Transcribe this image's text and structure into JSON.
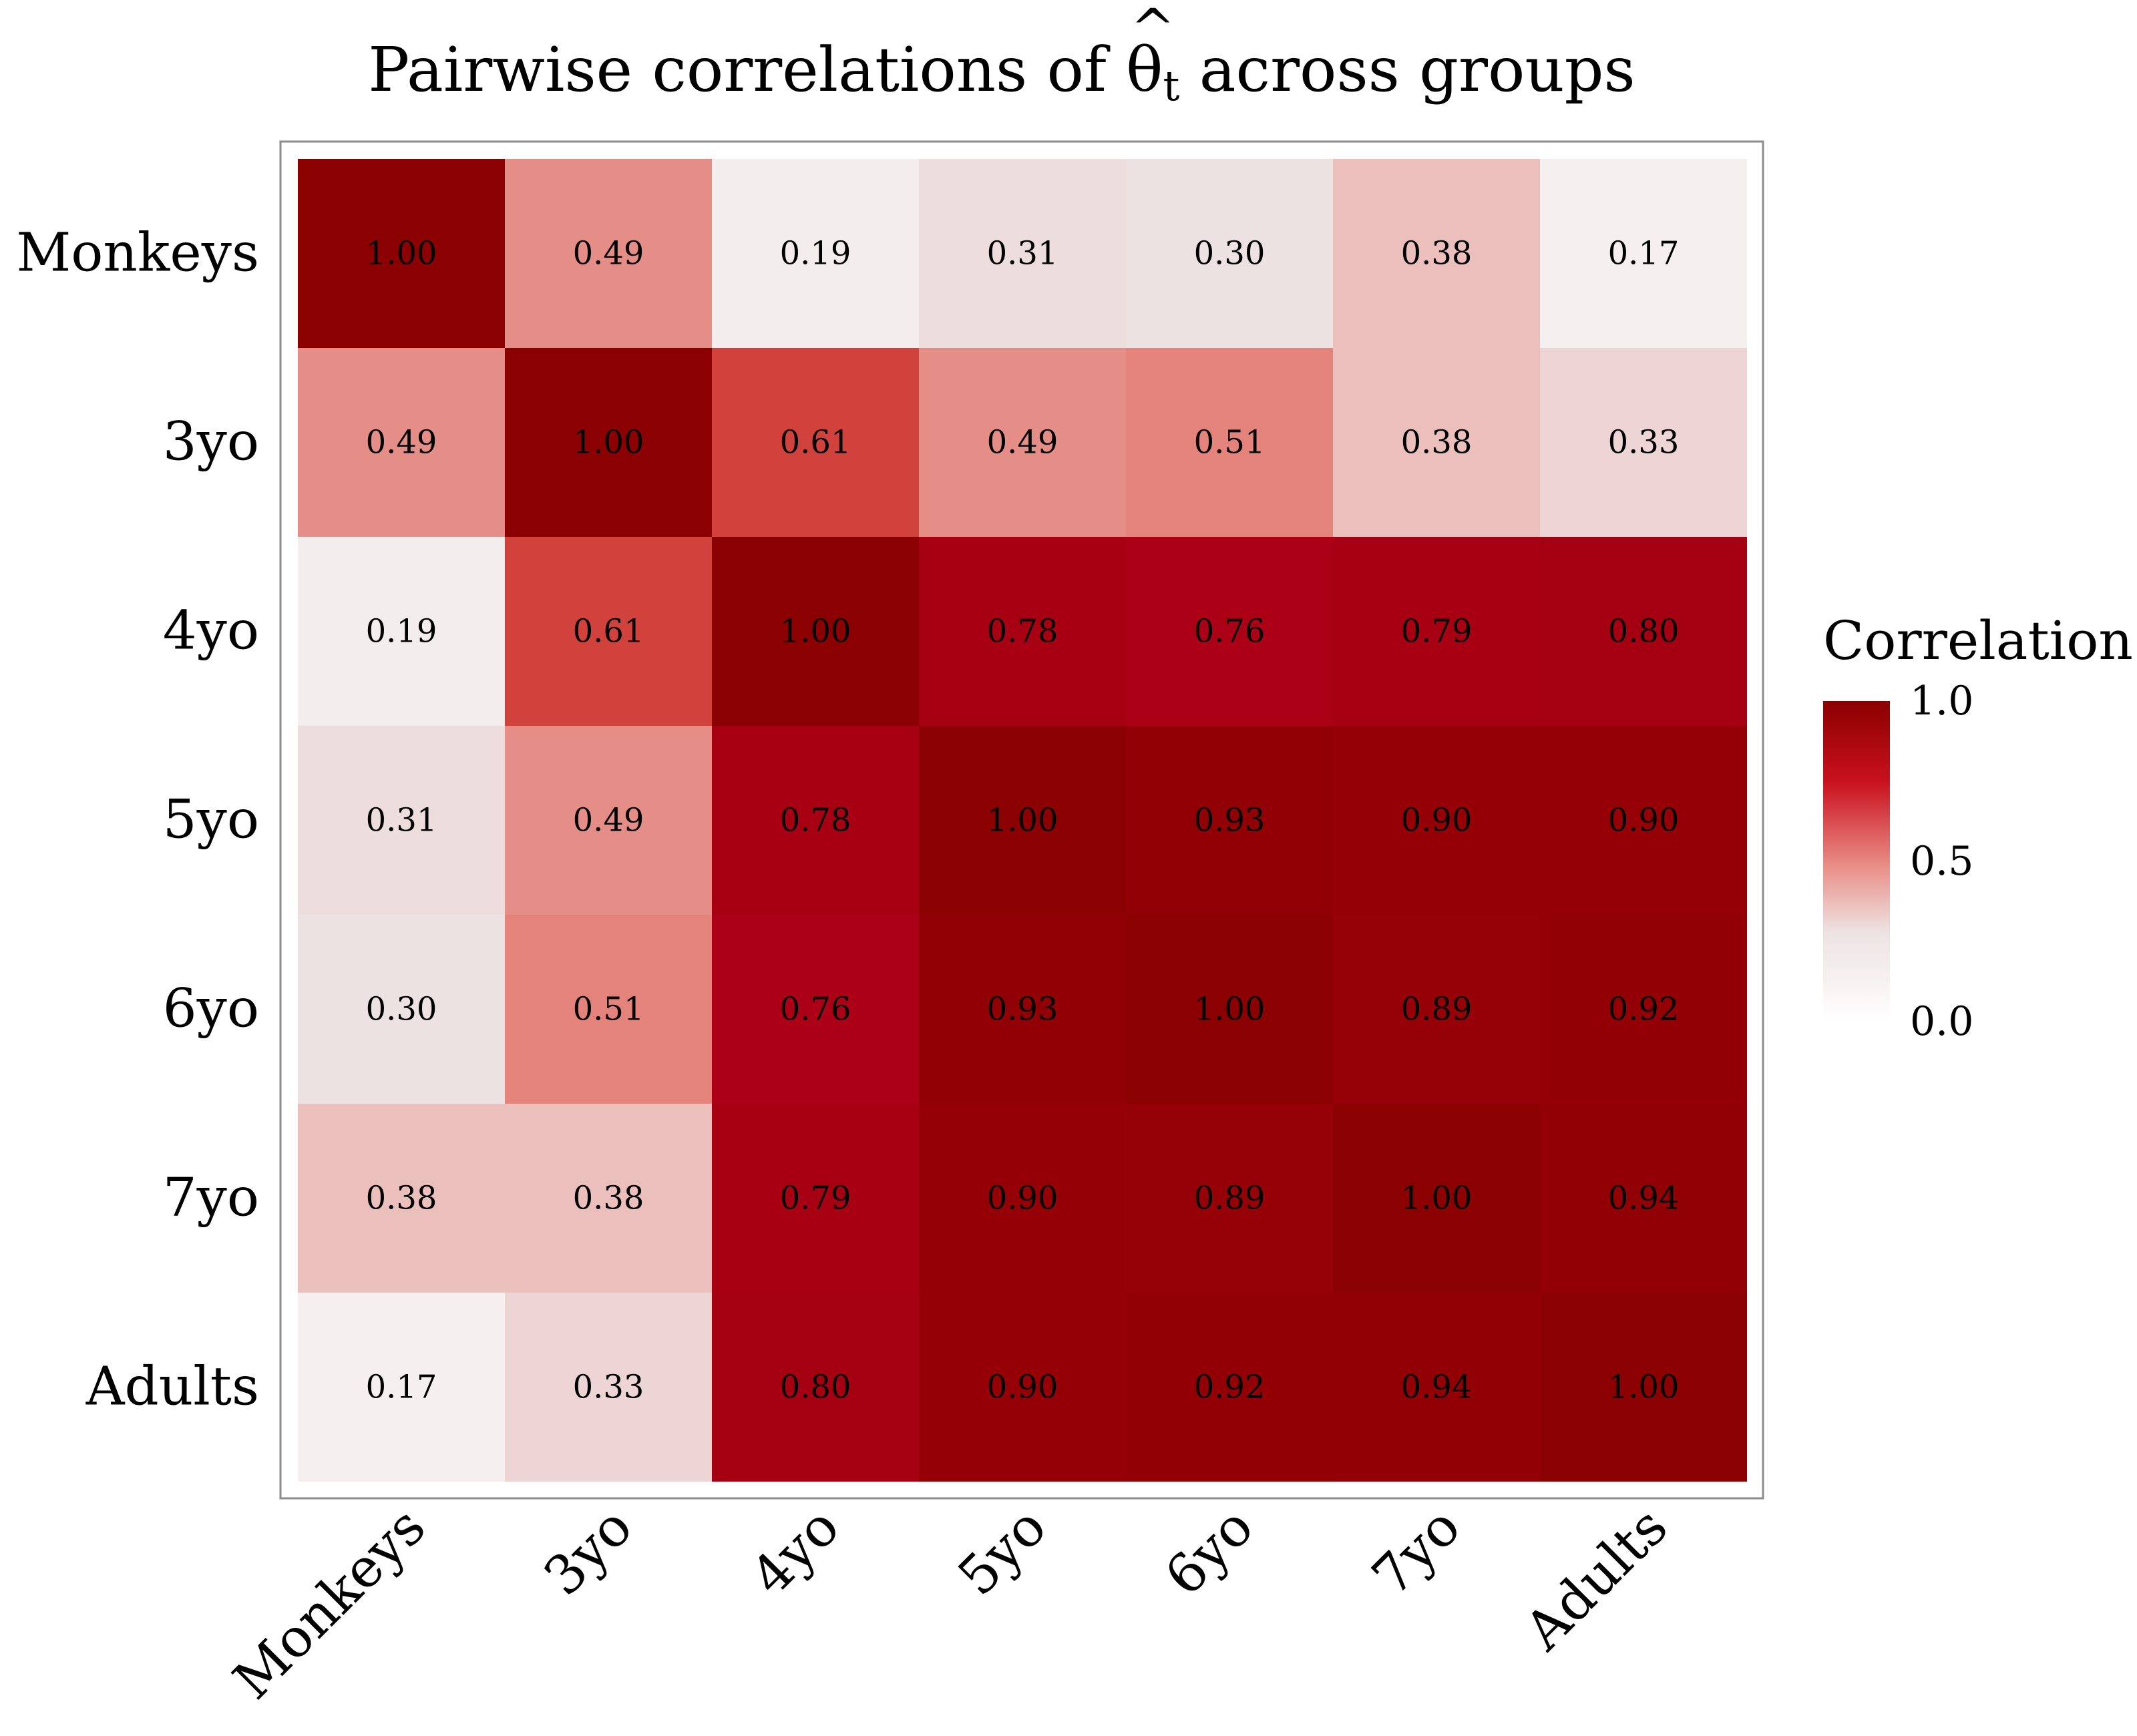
{
  "chart_data": {
    "type": "heatmap",
    "title_prefix": "Pairwise correlations of ",
    "title_symbol": "θ",
    "title_hat": "^",
    "title_subscript": "t",
    "title_suffix": " across groups",
    "rows": [
      "Monkeys",
      "3yo",
      "4yo",
      "5yo",
      "6yo",
      "7yo",
      "Adults"
    ],
    "columns": [
      "Monkeys",
      "3yo",
      "4yo",
      "5yo",
      "6yo",
      "7yo",
      "Adults"
    ],
    "values": [
      [
        1.0,
        0.49,
        0.19,
        0.31,
        0.3,
        0.38,
        0.17
      ],
      [
        0.49,
        1.0,
        0.61,
        0.49,
        0.51,
        0.38,
        0.33
      ],
      [
        0.19,
        0.61,
        1.0,
        0.78,
        0.76,
        0.79,
        0.8
      ],
      [
        0.31,
        0.49,
        0.78,
        1.0,
        0.93,
        0.9,
        0.9
      ],
      [
        0.3,
        0.51,
        0.76,
        0.93,
        1.0,
        0.89,
        0.92
      ],
      [
        0.38,
        0.38,
        0.79,
        0.9,
        0.89,
        1.0,
        0.94
      ],
      [
        0.17,
        0.33,
        0.8,
        0.9,
        0.92,
        0.94,
        1.0
      ]
    ],
    "value_labels": [
      [
        "1.00",
        "0.49",
        "0.19",
        "0.31",
        "0.30",
        "0.38",
        "0.17"
      ],
      [
        "0.49",
        "1.00",
        "0.61",
        "0.49",
        "0.51",
        "0.38",
        "0.33"
      ],
      [
        "0.19",
        "0.61",
        "1.00",
        "0.78",
        "0.76",
        "0.79",
        "0.80"
      ],
      [
        "0.31",
        "0.49",
        "0.78",
        "1.00",
        "0.93",
        "0.90",
        "0.90"
      ],
      [
        "0.30",
        "0.51",
        "0.76",
        "0.93",
        "1.00",
        "0.89",
        "0.92"
      ],
      [
        "0.38",
        "0.38",
        "0.79",
        "0.90",
        "0.89",
        "1.00",
        "0.94"
      ],
      [
        "0.17",
        "0.33",
        "0.80",
        "0.90",
        "0.92",
        "0.94",
        "1.00"
      ]
    ],
    "legend": {
      "title": "Correlation",
      "placement": "right",
      "range": [
        0,
        1
      ],
      "ticks": [
        1.0,
        0.5,
        0.0
      ],
      "tick_labels": [
        "1.0",
        "0.5",
        "0.0"
      ]
    },
    "colors": {
      "low": "#ffffff",
      "mid": "#e99189",
      "high": "#8b0000",
      "stops": [
        {
          "v": 0.0,
          "c": "#ffffff"
        },
        {
          "v": 0.3,
          "c": "#ede2e2"
        },
        {
          "v": 0.5,
          "c": "#e58a82"
        },
        {
          "v": 0.6,
          "c": "#d44740"
        },
        {
          "v": 0.75,
          "c": "#ad0016"
        },
        {
          "v": 0.9,
          "c": "#940006"
        },
        {
          "v": 1.0,
          "c": "#8b0000"
        }
      ]
    }
  }
}
